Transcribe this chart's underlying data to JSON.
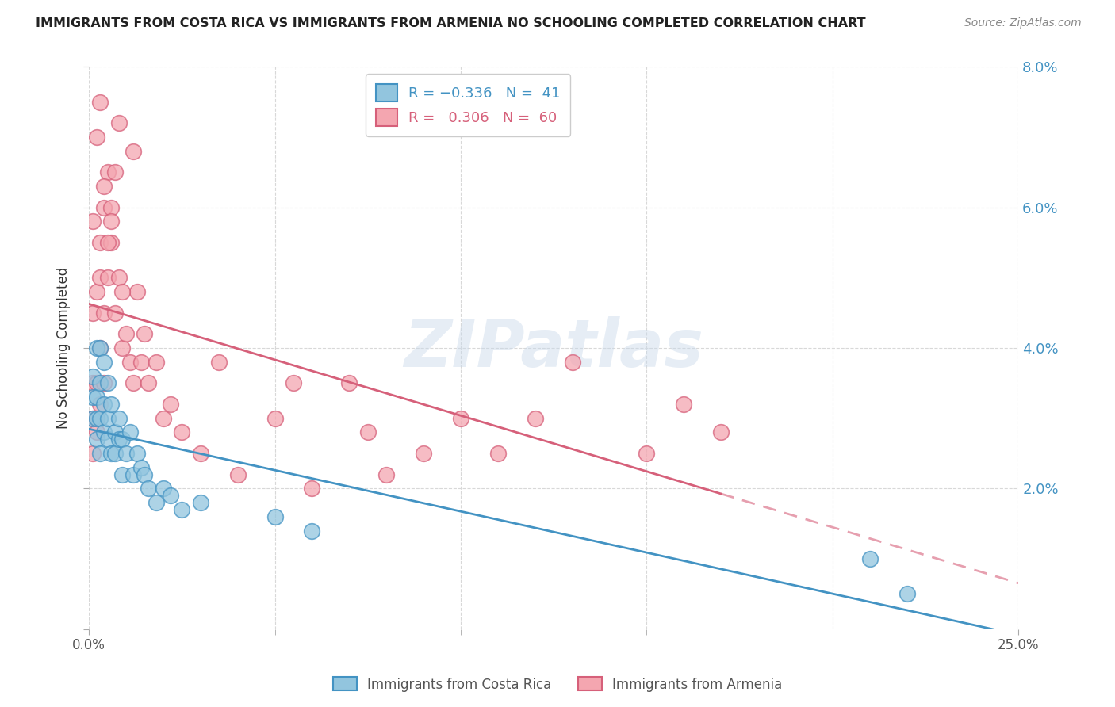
{
  "title": "IMMIGRANTS FROM COSTA RICA VS IMMIGRANTS FROM ARMENIA NO SCHOOLING COMPLETED CORRELATION CHART",
  "source": "Source: ZipAtlas.com",
  "ylabel": "No Schooling Completed",
  "legend_labels": [
    "Immigrants from Costa Rica",
    "Immigrants from Armenia"
  ],
  "color_cr": "#92C5DE",
  "color_arm": "#F4A6B0",
  "line_color_cr": "#4393C3",
  "line_color_arm": "#D6607A",
  "watermark": "ZIPatlas",
  "xlim": [
    0.0,
    0.25
  ],
  "ylim": [
    0.0,
    0.08
  ],
  "xticks": [
    0.0,
    0.25
  ],
  "xticklabels": [
    "0.0%",
    "25.0%"
  ],
  "yticks": [
    0.0,
    0.02,
    0.04,
    0.06,
    0.08
  ],
  "yticklabels_right": [
    "",
    "2.0%",
    "4.0%",
    "6.0%",
    "8.0%"
  ],
  "background_color": "#ffffff",
  "grid_color": "#d8d8d8",
  "cr_x": [
    0.001,
    0.001,
    0.001,
    0.002,
    0.002,
    0.002,
    0.002,
    0.003,
    0.003,
    0.003,
    0.003,
    0.004,
    0.004,
    0.004,
    0.005,
    0.005,
    0.005,
    0.006,
    0.006,
    0.007,
    0.007,
    0.008,
    0.008,
    0.009,
    0.009,
    0.01,
    0.011,
    0.012,
    0.013,
    0.014,
    0.015,
    0.016,
    0.018,
    0.02,
    0.022,
    0.025,
    0.03,
    0.05,
    0.06,
    0.21,
    0.22
  ],
  "cr_y": [
    0.03,
    0.033,
    0.036,
    0.027,
    0.03,
    0.033,
    0.04,
    0.025,
    0.03,
    0.035,
    0.04,
    0.028,
    0.032,
    0.038,
    0.027,
    0.03,
    0.035,
    0.025,
    0.032,
    0.025,
    0.028,
    0.027,
    0.03,
    0.022,
    0.027,
    0.025,
    0.028,
    0.022,
    0.025,
    0.023,
    0.022,
    0.02,
    0.018,
    0.02,
    0.019,
    0.017,
    0.018,
    0.016,
    0.014,
    0.01,
    0.005
  ],
  "arm_x": [
    0.001,
    0.001,
    0.001,
    0.001,
    0.002,
    0.002,
    0.002,
    0.002,
    0.003,
    0.003,
    0.003,
    0.003,
    0.004,
    0.004,
    0.004,
    0.005,
    0.005,
    0.006,
    0.006,
    0.007,
    0.007,
    0.008,
    0.009,
    0.01,
    0.011,
    0.012,
    0.013,
    0.014,
    0.015,
    0.016,
    0.018,
    0.02,
    0.022,
    0.025,
    0.03,
    0.035,
    0.04,
    0.05,
    0.055,
    0.06,
    0.07,
    0.075,
    0.08,
    0.09,
    0.1,
    0.11,
    0.12,
    0.13,
    0.15,
    0.16,
    0.17,
    0.012,
    0.008,
    0.006,
    0.003,
    0.004,
    0.009,
    0.005,
    0.002,
    0.001
  ],
  "arm_y": [
    0.045,
    0.03,
    0.035,
    0.025,
    0.048,
    0.03,
    0.035,
    0.028,
    0.032,
    0.04,
    0.05,
    0.055,
    0.045,
    0.06,
    0.035,
    0.05,
    0.065,
    0.055,
    0.06,
    0.065,
    0.045,
    0.05,
    0.04,
    0.042,
    0.038,
    0.035,
    0.048,
    0.038,
    0.042,
    0.035,
    0.038,
    0.03,
    0.032,
    0.028,
    0.025,
    0.038,
    0.022,
    0.03,
    0.035,
    0.02,
    0.035,
    0.028,
    0.022,
    0.025,
    0.03,
    0.025,
    0.03,
    0.038,
    0.025,
    0.032,
    0.028,
    0.068,
    0.072,
    0.058,
    0.075,
    0.063,
    0.048,
    0.055,
    0.07,
    0.058
  ]
}
